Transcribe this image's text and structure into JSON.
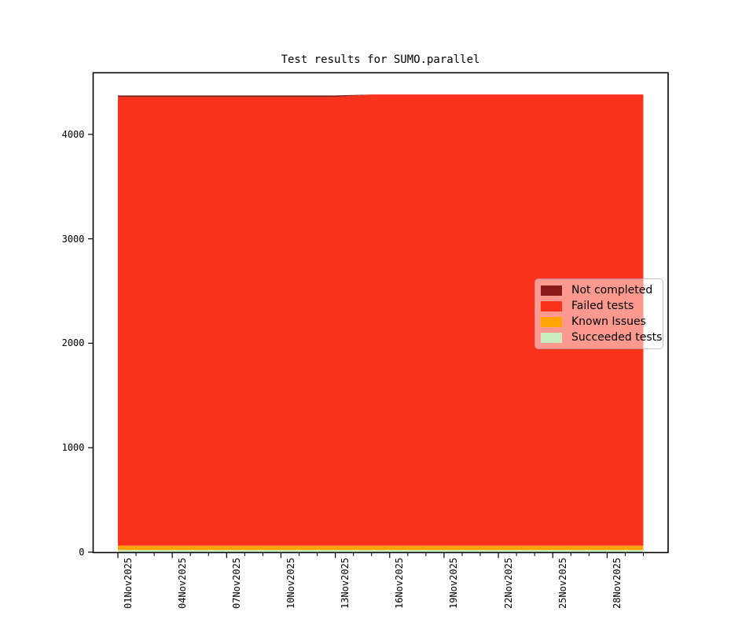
{
  "chart_data": {
    "type": "area",
    "stacked": true,
    "title": "Test results for SUMO.parallel",
    "xlabel": "",
    "ylabel": "",
    "x": [
      "01Nov2025",
      "02Nov2025",
      "03Nov2025",
      "04Nov2025",
      "05Nov2025",
      "06Nov2025",
      "07Nov2025",
      "08Nov2025",
      "09Nov2025",
      "10Nov2025",
      "11Nov2025",
      "12Nov2025",
      "13Nov2025",
      "14Nov2025",
      "15Nov2025",
      "16Nov2025",
      "17Nov2025",
      "18Nov2025",
      "19Nov2025",
      "20Nov2025",
      "21Nov2025",
      "22Nov2025",
      "23Nov2025",
      "24Nov2025",
      "25Nov2025",
      "26Nov2025",
      "27Nov2025",
      "28Nov2025",
      "29Nov2025",
      "30Nov2025"
    ],
    "x_tick_label_step": 3,
    "ylim": [
      0,
      4590
    ],
    "yticks": [
      0,
      1000,
      2000,
      3000,
      4000
    ],
    "grid": false,
    "legend_position": "center-right",
    "series": [
      {
        "name": "Not completed",
        "color": "#8B1A1A",
        "values": [
          15,
          15,
          15,
          15,
          15,
          15,
          15,
          15,
          15,
          15,
          15,
          15,
          15,
          8,
          0,
          0,
          0,
          0,
          0,
          0,
          0,
          0,
          0,
          0,
          0,
          0,
          0,
          0,
          0,
          0
        ]
      },
      {
        "name": "Failed tests",
        "color": "#FA321C",
        "values": [
          4295,
          4295,
          4295,
          4295,
          4295,
          4295,
          4295,
          4295,
          4295,
          4295,
          4295,
          4295,
          4295,
          4308,
          4320,
          4320,
          4320,
          4320,
          4320,
          4320,
          4320,
          4320,
          4320,
          4320,
          4320,
          4320,
          4320,
          4320,
          4320,
          4320
        ]
      },
      {
        "name": "Known Issues",
        "color": "#FFA407",
        "values": [
          42,
          42,
          42,
          42,
          42,
          42,
          42,
          42,
          42,
          42,
          42,
          42,
          42,
          42,
          42,
          42,
          42,
          42,
          42,
          42,
          42,
          42,
          42,
          42,
          42,
          42,
          42,
          42,
          42,
          42
        ]
      },
      {
        "name": "Succeeded tests",
        "color": "#C9EDBF",
        "values": [
          20,
          20,
          20,
          20,
          20,
          20,
          20,
          20,
          20,
          20,
          20,
          20,
          20,
          20,
          20,
          20,
          20,
          20,
          20,
          20,
          20,
          20,
          20,
          20,
          20,
          20,
          20,
          20,
          20,
          20
        ]
      }
    ]
  }
}
